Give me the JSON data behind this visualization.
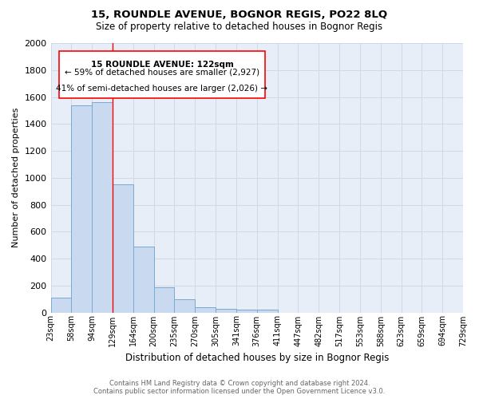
{
  "title1": "15, ROUNDLE AVENUE, BOGNOR REGIS, PO22 8LQ",
  "title2": "Size of property relative to detached houses in Bognor Regis",
  "xlabel": "Distribution of detached houses by size in Bognor Regis",
  "ylabel": "Number of detached properties",
  "footer1": "Contains HM Land Registry data © Crown copyright and database right 2024.",
  "footer2": "Contains public sector information licensed under the Open Government Licence v3.0.",
  "bin_labels": [
    "23sqm",
    "58sqm",
    "94sqm",
    "129sqm",
    "164sqm",
    "200sqm",
    "235sqm",
    "270sqm",
    "305sqm",
    "341sqm",
    "376sqm",
    "411sqm",
    "447sqm",
    "482sqm",
    "517sqm",
    "553sqm",
    "588sqm",
    "623sqm",
    "659sqm",
    "694sqm",
    "729sqm"
  ],
  "bar_values": [
    110,
    1540,
    1560,
    950,
    490,
    185,
    100,
    40,
    28,
    20,
    18,
    0,
    0,
    0,
    0,
    0,
    0,
    0,
    0,
    0
  ],
  "bar_color": "#c9d9f0",
  "bar_edge_color": "#7aaad0",
  "grid_color": "#d0d8e8",
  "bg_color": "#e8eef8",
  "red_line_x": 3.0,
  "property_label": "15 ROUNDLE AVENUE: 122sqm",
  "annotation_line1": "← 59% of detached houses are smaller (2,927)",
  "annotation_line2": "41% of semi-detached houses are larger (2,026) →",
  "ylim": [
    0,
    2000
  ],
  "yticks": [
    0,
    200,
    400,
    600,
    800,
    1000,
    1200,
    1400,
    1600,
    1800,
    2000
  ]
}
